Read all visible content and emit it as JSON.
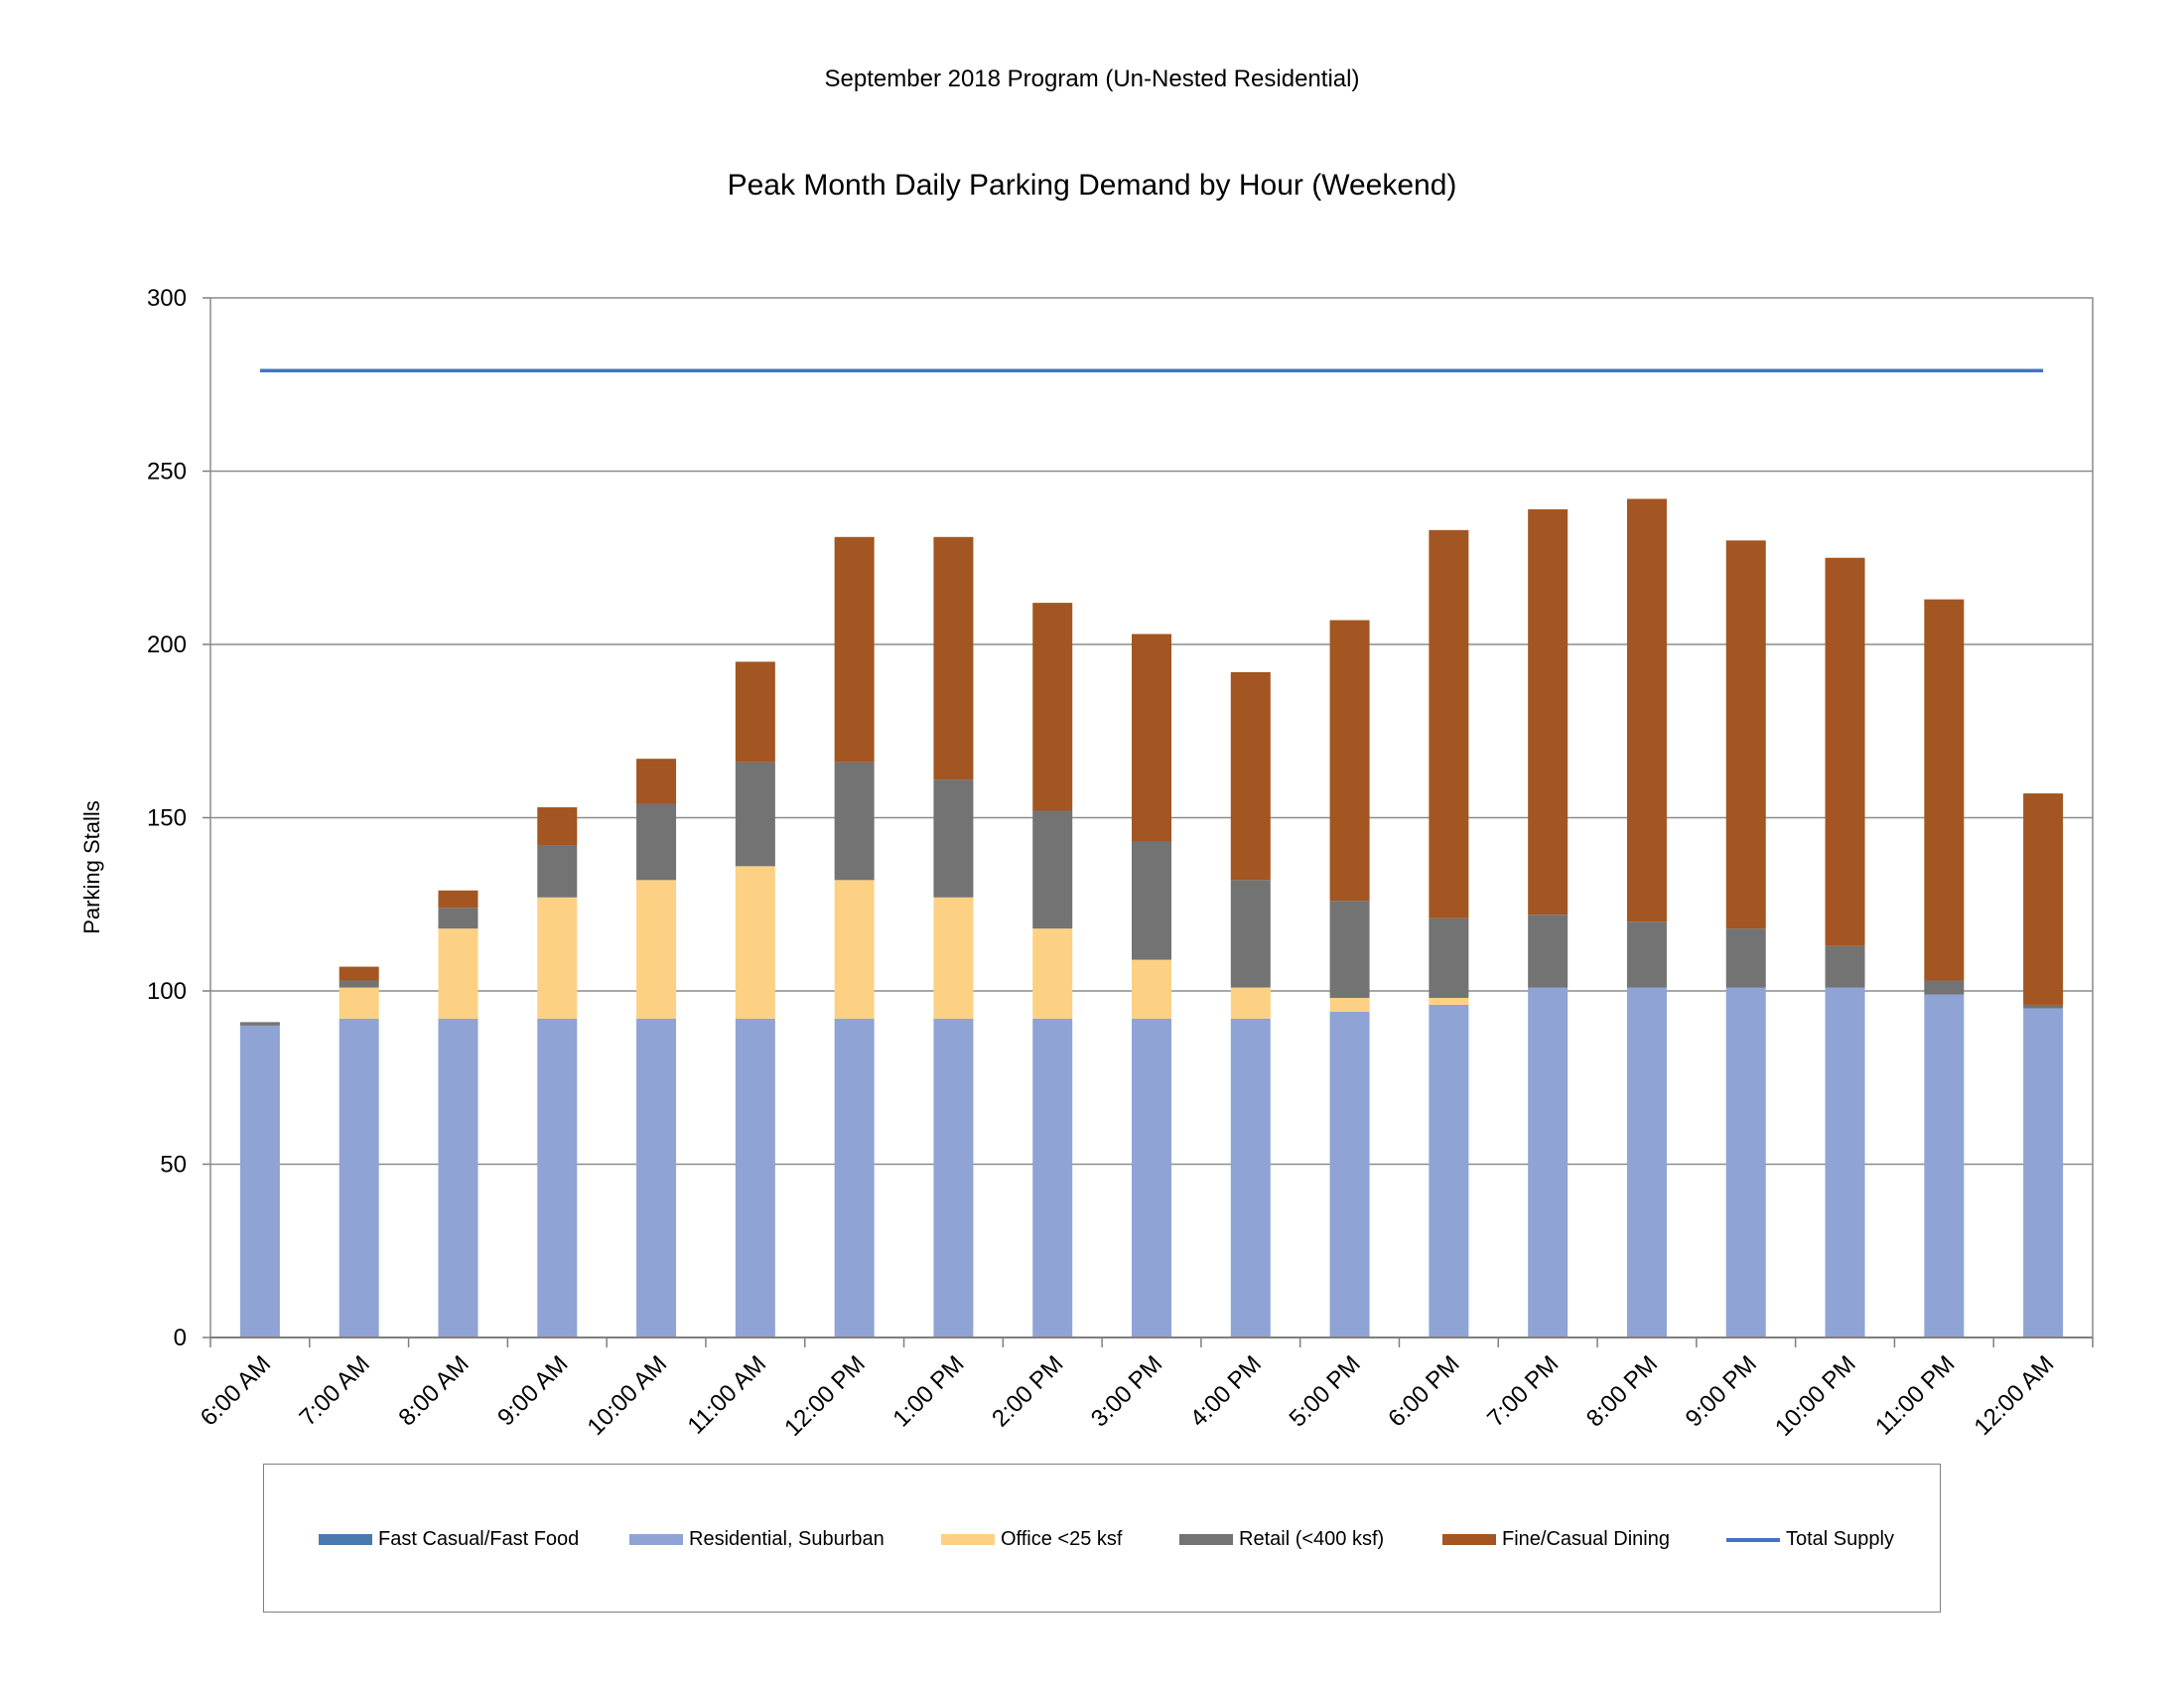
{
  "header": {
    "supertitle": "September 2018 Program (Un-Nested Residential)",
    "title": "Peak Month Daily Parking Demand by Hour (Weekend)"
  },
  "chart_data": {
    "type": "bar",
    "stacked": true,
    "title": "Peak Month Daily Parking Demand by Hour (Weekend)",
    "ylabel": "Parking Stalls",
    "xlabel": "",
    "ylim": [
      0,
      300
    ],
    "yticks": [
      0,
      50,
      100,
      150,
      200,
      250,
      300
    ],
    "grid": true,
    "legend_position": "bottom",
    "categories": [
      "6:00 AM",
      "7:00 AM",
      "8:00 AM",
      "9:00 AM",
      "10:00 AM",
      "11:00 AM",
      "12:00 PM",
      "1:00 PM",
      "2:00 PM",
      "3:00 PM",
      "4:00 PM",
      "5:00 PM",
      "6:00 PM",
      "7:00 PM",
      "8:00 PM",
      "9:00 PM",
      "10:00 PM",
      "11:00 PM",
      "12:00 AM"
    ],
    "series": [
      {
        "name": "Fast Casual/Fast Food",
        "type": "bar",
        "color": "#4a7aad",
        "values": [
          0,
          0,
          0,
          0,
          0,
          0,
          0,
          0,
          0,
          0,
          0,
          0,
          0,
          0,
          0,
          0,
          0,
          0,
          0
        ]
      },
      {
        "name": "Residential, Suburban",
        "type": "bar",
        "color": "#8fa3d5",
        "values": [
          90,
          92,
          92,
          92,
          92,
          92,
          92,
          92,
          92,
          92,
          92,
          94,
          96,
          101,
          101,
          101,
          101,
          99,
          95
        ]
      },
      {
        "name": "Office <25 ksf",
        "type": "bar",
        "color": "#fcd184",
        "values": [
          0,
          9,
          26,
          35,
          40,
          44,
          40,
          35,
          26,
          17,
          9,
          4,
          2,
          0,
          0,
          0,
          0,
          0,
          0
        ]
      },
      {
        "name": "Retail (<400 ksf)",
        "type": "bar",
        "color": "#737373",
        "values": [
          1,
          2,
          6,
          15,
          22,
          30,
          34,
          34,
          34,
          34,
          31,
          28,
          23,
          21,
          19,
          17,
          12,
          4,
          1
        ]
      },
      {
        "name": "Fine/Casual Dining",
        "type": "bar",
        "color": "#a35621",
        "values": [
          0,
          4,
          5,
          11,
          13,
          29,
          65,
          70,
          60,
          60,
          60,
          81,
          112,
          117,
          122,
          112,
          112,
          110,
          61
        ]
      },
      {
        "name": "Total Supply",
        "type": "line",
        "color": "#4472c4",
        "values": [
          279,
          279,
          279,
          279,
          279,
          279,
          279,
          279,
          279,
          279,
          279,
          279,
          279,
          279,
          279,
          279,
          279,
          279,
          279
        ]
      }
    ]
  }
}
